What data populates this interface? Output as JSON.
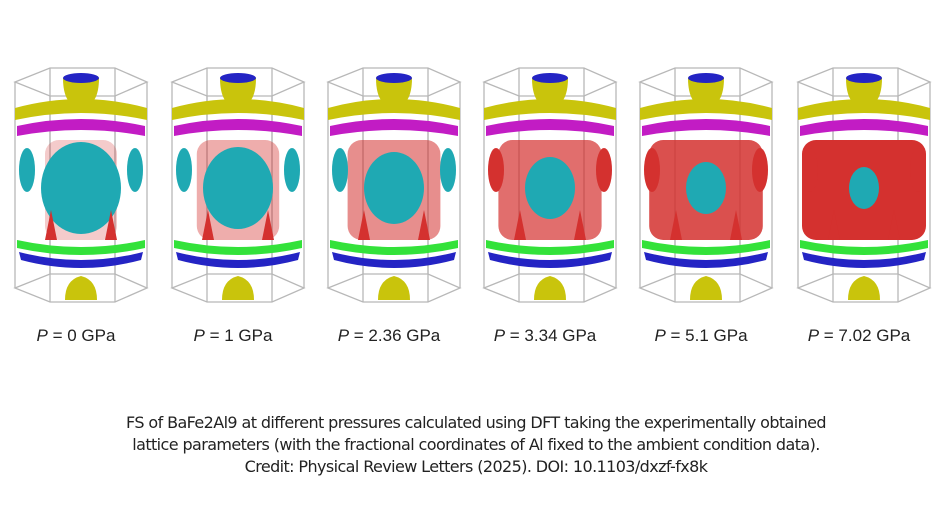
{
  "figure": {
    "panels": [
      {
        "symbol": "P",
        "label": " = 0 GPa"
      },
      {
        "symbol": "P",
        "label": " = 1 GPa"
      },
      {
        "symbol": "P",
        "label": " = 2.36 GPa"
      },
      {
        "symbol": "P",
        "label": " = 3.34 GPa"
      },
      {
        "symbol": "P",
        "label": " = 5.1 GPa"
      },
      {
        "symbol": "P",
        "label": " = 7.02 GPa"
      }
    ],
    "colors": {
      "band_yellow": "#c9c40c",
      "band_magenta": "#c21cc4",
      "band_cyan": "#1fa9b3",
      "band_red": "#d4312f",
      "band_green": "#33e23a",
      "band_blue": "#2424c4",
      "frame": "#b8b8b8"
    }
  },
  "caption": {
    "line1": "FS of BaFe2Al9 at different pressures calculated using DFT taking the experimentally obtained",
    "line2": "lattice parameters (with the fractional coordinates of Al fixed to the ambient condition data).",
    "line3": "Credit: Physical Review Letters (2025). DOI: 10.1103/dxzf-fx8k"
  }
}
